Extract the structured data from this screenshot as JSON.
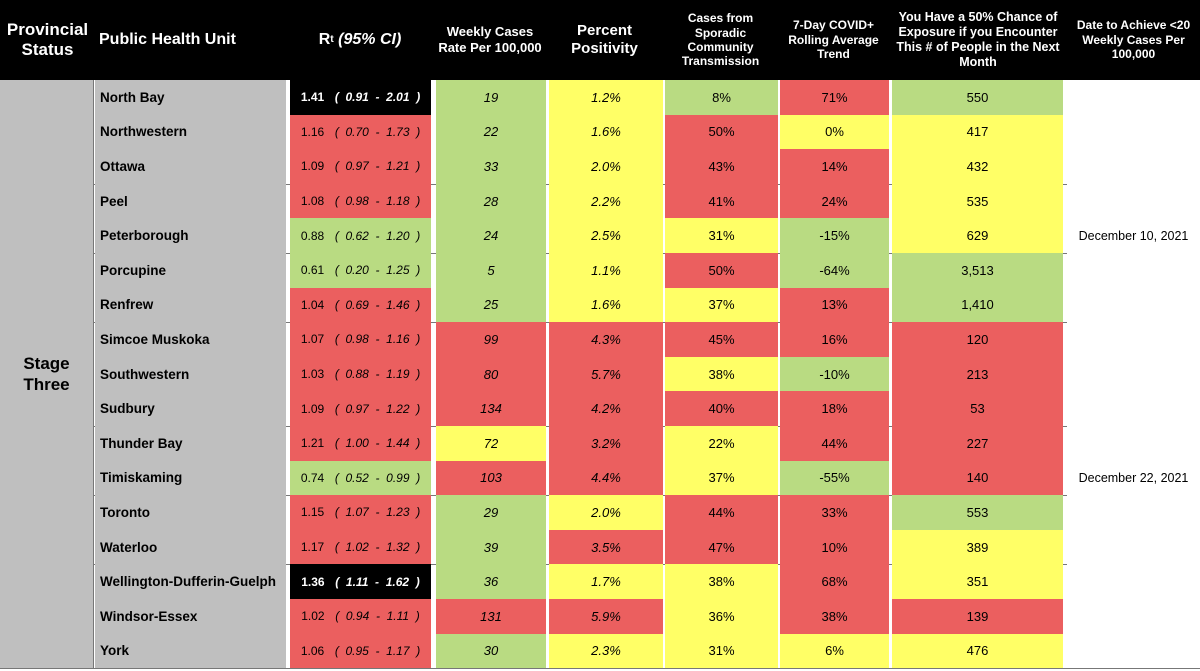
{
  "headers": {
    "status": "Provincial Status",
    "unit": "Public Health Unit",
    "rt_main": "R",
    "rt_sub": "t",
    "rt_ci": "(95% CI)",
    "weekly": "Weekly Cases Rate Per 100,000",
    "positivity": "Percent Positivity",
    "sporadic": "Cases from Sporadic Community Transmission",
    "trend": "7-Day COVID+ Rolling Average Trend",
    "exposure": "You Have a 50% Chance of Exposure if you Encounter This # of People in the Next Month",
    "date": "Date to Achieve <20 Weekly Cases Per 100,000"
  },
  "status_label": "Stage Three",
  "colors": {
    "green": "#b9db82",
    "yellow": "#ffff66",
    "red": "#eb5f5f",
    "grey": "#bfbfbf",
    "black": "#000000"
  },
  "rows": [
    {
      "unit": "North Bay",
      "rt": "1.41",
      "rt_ci": "(  0.91  -  2.01  )",
      "rt_color": "black",
      "weekly": "19",
      "weekly_color": "green",
      "positivity": "1.2%",
      "positivity_color": "yellow",
      "sporadic": "8%",
      "sporadic_color": "green",
      "trend": "71%",
      "trend_color": "red",
      "exposure": "550",
      "exposure_color": "green",
      "date": ""
    },
    {
      "unit": "Northwestern",
      "rt": "1.16",
      "rt_ci": "(  0.70  -  1.73  )",
      "rt_color": "red",
      "weekly": "22",
      "weekly_color": "green",
      "positivity": "1.6%",
      "positivity_color": "yellow",
      "sporadic": "50%",
      "sporadic_color": "red",
      "trend": "0%",
      "trend_color": "yellow",
      "exposure": "417",
      "exposure_color": "yellow",
      "date": ""
    },
    {
      "unit": "Ottawa",
      "rt": "1.09",
      "rt_ci": "(  0.97  -  1.21  )",
      "rt_color": "red",
      "weekly": "33",
      "weekly_color": "green",
      "positivity": "2.0%",
      "positivity_color": "yellow",
      "sporadic": "43%",
      "sporadic_color": "red",
      "trend": "14%",
      "trend_color": "red",
      "exposure": "432",
      "exposure_color": "yellow",
      "date": ""
    },
    {
      "unit": "Peel",
      "rt": "1.08",
      "rt_ci": "(  0.98  -  1.18  )",
      "rt_color": "red",
      "weekly": "28",
      "weekly_color": "green",
      "positivity": "2.2%",
      "positivity_color": "yellow",
      "sporadic": "41%",
      "sporadic_color": "red",
      "trend": "24%",
      "trend_color": "red",
      "exposure": "535",
      "exposure_color": "yellow",
      "date": ""
    },
    {
      "unit": "Peterborough",
      "rt": "0.88",
      "rt_ci": "(  0.62  -  1.20  )",
      "rt_color": "green",
      "weekly": "24",
      "weekly_color": "green",
      "positivity": "2.5%",
      "positivity_color": "yellow",
      "sporadic": "31%",
      "sporadic_color": "yellow",
      "trend": "-15%",
      "trend_color": "green",
      "exposure": "629",
      "exposure_color": "yellow",
      "date": "December 10, 2021"
    },
    {
      "unit": "Porcupine",
      "rt": "0.61",
      "rt_ci": "(  0.20  -  1.25  )",
      "rt_color": "green",
      "weekly": "5",
      "weekly_color": "green",
      "positivity": "1.1%",
      "positivity_color": "yellow",
      "sporadic": "50%",
      "sporadic_color": "red",
      "trend": "-64%",
      "trend_color": "green",
      "exposure": "3,513",
      "exposure_color": "green",
      "date": ""
    },
    {
      "unit": "Renfrew",
      "rt": "1.04",
      "rt_ci": "(  0.69  -  1.46  )",
      "rt_color": "red",
      "weekly": "25",
      "weekly_color": "green",
      "positivity": "1.6%",
      "positivity_color": "yellow",
      "sporadic": "37%",
      "sporadic_color": "yellow",
      "trend": "13%",
      "trend_color": "red",
      "exposure": "1,410",
      "exposure_color": "green",
      "date": ""
    },
    {
      "unit": "Simcoe Muskoka",
      "rt": "1.07",
      "rt_ci": "(  0.98  -  1.16  )",
      "rt_color": "red",
      "weekly": "99",
      "weekly_color": "red",
      "positivity": "4.3%",
      "positivity_color": "red",
      "sporadic": "45%",
      "sporadic_color": "red",
      "trend": "16%",
      "trend_color": "red",
      "exposure": "120",
      "exposure_color": "red",
      "date": ""
    },
    {
      "unit": "Southwestern",
      "rt": "1.03",
      "rt_ci": "(  0.88  -  1.19  )",
      "rt_color": "red",
      "weekly": "80",
      "weekly_color": "red",
      "positivity": "5.7%",
      "positivity_color": "red",
      "sporadic": "38%",
      "sporadic_color": "yellow",
      "trend": "-10%",
      "trend_color": "green",
      "exposure": "213",
      "exposure_color": "red",
      "date": ""
    },
    {
      "unit": "Sudbury",
      "rt": "1.09",
      "rt_ci": "(  0.97  -  1.22  )",
      "rt_color": "red",
      "weekly": "134",
      "weekly_color": "red",
      "positivity": "4.2%",
      "positivity_color": "red",
      "sporadic": "40%",
      "sporadic_color": "red",
      "trend": "18%",
      "trend_color": "red",
      "exposure": "53",
      "exposure_color": "red",
      "date": ""
    },
    {
      "unit": "Thunder Bay",
      "rt": "1.21",
      "rt_ci": "(  1.00  -  1.44  )",
      "rt_color": "red",
      "weekly": "72",
      "weekly_color": "yellow",
      "positivity": "3.2%",
      "positivity_color": "red",
      "sporadic": "22%",
      "sporadic_color": "yellow",
      "trend": "44%",
      "trend_color": "red",
      "exposure": "227",
      "exposure_color": "red",
      "date": ""
    },
    {
      "unit": "Timiskaming",
      "rt": "0.74",
      "rt_ci": "(  0.52  -  0.99  )",
      "rt_color": "green",
      "weekly": "103",
      "weekly_color": "red",
      "positivity": "4.4%",
      "positivity_color": "red",
      "sporadic": "37%",
      "sporadic_color": "yellow",
      "trend": "-55%",
      "trend_color": "green",
      "exposure": "140",
      "exposure_color": "red",
      "date": "December 22, 2021"
    },
    {
      "unit": "Toronto",
      "rt": "1.15",
      "rt_ci": "(  1.07  -  1.23  )",
      "rt_color": "red",
      "weekly": "29",
      "weekly_color": "green",
      "positivity": "2.0%",
      "positivity_color": "yellow",
      "sporadic": "44%",
      "sporadic_color": "red",
      "trend": "33%",
      "trend_color": "red",
      "exposure": "553",
      "exposure_color": "green",
      "date": ""
    },
    {
      "unit": "Waterloo",
      "rt": "1.17",
      "rt_ci": "(  1.02  -  1.32  )",
      "rt_color": "red",
      "weekly": "39",
      "weekly_color": "green",
      "positivity": "3.5%",
      "positivity_color": "red",
      "sporadic": "47%",
      "sporadic_color": "red",
      "trend": "10%",
      "trend_color": "red",
      "exposure": "389",
      "exposure_color": "yellow",
      "date": ""
    },
    {
      "unit": "Wellington-Dufferin-Guelph",
      "rt": "1.36",
      "rt_ci": "(  1.11  -  1.62  )",
      "rt_color": "black",
      "weekly": "36",
      "weekly_color": "green",
      "positivity": "1.7%",
      "positivity_color": "yellow",
      "sporadic": "38%",
      "sporadic_color": "yellow",
      "trend": "68%",
      "trend_color": "red",
      "exposure": "351",
      "exposure_color": "yellow",
      "date": ""
    },
    {
      "unit": "Windsor-Essex",
      "rt": "1.02",
      "rt_ci": "(  0.94  -  1.11  )",
      "rt_color": "red",
      "weekly": "131",
      "weekly_color": "red",
      "positivity": "5.9%",
      "positivity_color": "red",
      "sporadic": "36%",
      "sporadic_color": "yellow",
      "trend": "38%",
      "trend_color": "red",
      "exposure": "139",
      "exposure_color": "red",
      "date": ""
    },
    {
      "unit": "York",
      "rt": "1.06",
      "rt_ci": "(  0.95  -  1.17  )",
      "rt_color": "red",
      "weekly": "30",
      "weekly_color": "green",
      "positivity": "2.3%",
      "positivity_color": "yellow",
      "sporadic": "31%",
      "sporadic_color": "yellow",
      "trend": "6%",
      "trend_color": "yellow",
      "exposure": "476",
      "exposure_color": "yellow",
      "date": ""
    }
  ]
}
